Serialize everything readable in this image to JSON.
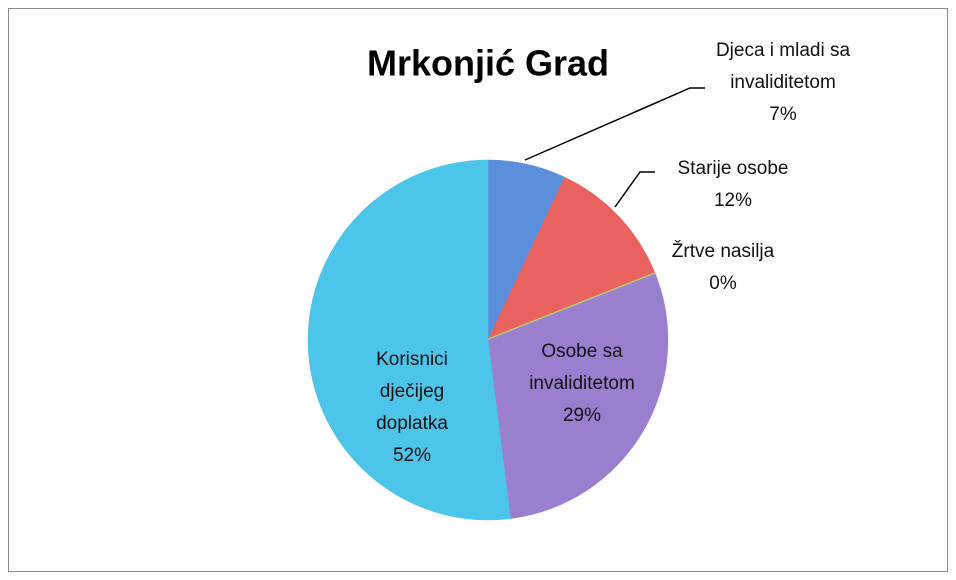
{
  "chart_data": {
    "type": "pie",
    "title": "Mrkonjić Grad",
    "categories": [
      "Djeca i mladi sa invaliditetom",
      "Starije osobe",
      "Žrtve nasilja",
      "Osobe sa invaliditetom",
      "Korisnici dječijeg doplatka"
    ],
    "values": [
      7,
      12,
      0,
      29,
      52
    ],
    "value_labels": [
      "7%",
      "12%",
      "0%",
      "29%",
      "52%"
    ],
    "colors": [
      "#5b8fdb",
      "#e8625f",
      "#b8d66a",
      "#9a7fcf",
      "#4dc4ea"
    ]
  }
}
